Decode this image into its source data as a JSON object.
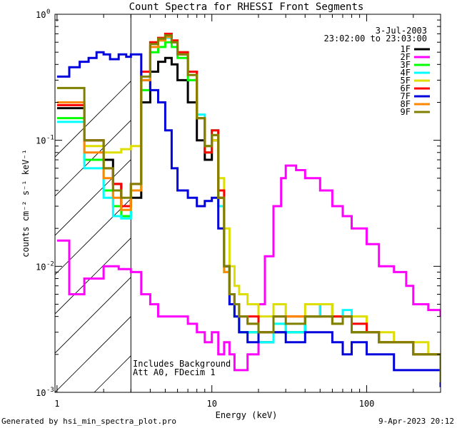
{
  "chart_data": {
    "type": "line",
    "title": "Count Spectra for RHESSI Front Segments",
    "xlabel": "Energy (keV)",
    "ylabel": "counts cm⁻² s⁻¹ keV⁻¹",
    "x_scale": "log",
    "y_scale": "log",
    "xlim": [
      0.97,
      300
    ],
    "ylim": [
      0.001,
      1.0
    ],
    "x_ticks": [
      {
        "value": 1,
        "label": "1"
      },
      {
        "value": 10,
        "label": "10"
      },
      {
        "value": 100,
        "label": "100"
      }
    ],
    "y_ticks": [
      {
        "value": 1.0,
        "base": "10",
        "exp": "0"
      },
      {
        "value": 0.1,
        "base": "10",
        "exp": "-1"
      },
      {
        "value": 0.01,
        "base": "10",
        "exp": "-2"
      },
      {
        "value": 0.001,
        "base": "10",
        "exp": "-3"
      }
    ],
    "date_label": "3-Jul-2003",
    "time_range_label": "23:02:00 to 23:03:00",
    "shaded_region": {
      "x_min": 0.97,
      "x_max": 3.0
    },
    "notes": [
      "Includes Background",
      "Att A0, FDecim 1"
    ],
    "legend_position": "top-right",
    "series": [
      {
        "name": "1F",
        "color": "#000000",
        "x": [
          1,
          1.5,
          2,
          2.3,
          2.6,
          3,
          3.5,
          4,
          4.5,
          5,
          5.5,
          6,
          7,
          8,
          9,
          10,
          11,
          12,
          13,
          14,
          15,
          17,
          20,
          25,
          30,
          40,
          50,
          60,
          70,
          80,
          100,
          120,
          150,
          200,
          250,
          300
        ],
        "y": [
          0.18,
          0.1,
          0.07,
          0.045,
          0.03,
          0.035,
          0.2,
          0.35,
          0.42,
          0.45,
          0.4,
          0.3,
          0.2,
          0.1,
          0.07,
          0.1,
          0.035,
          0.01,
          0.006,
          0.004,
          0.003,
          0.003,
          0.0025,
          0.003,
          0.003,
          0.004,
          0.005,
          0.004,
          0.004,
          0.003,
          0.003,
          0.0025,
          0.0025,
          0.002,
          0.002,
          0.0012
        ]
      },
      {
        "name": "2F",
        "color": "#ff00ff",
        "x": [
          1,
          1.2,
          1.5,
          2,
          2.5,
          3,
          3.5,
          4,
          4.5,
          5,
          6,
          7,
          8,
          9,
          10,
          11,
          12,
          13,
          14,
          15,
          17,
          20,
          22,
          25,
          28,
          30,
          35,
          40,
          50,
          60,
          70,
          80,
          100,
          120,
          150,
          180,
          200,
          250,
          300
        ],
        "y": [
          0.016,
          0.006,
          0.008,
          0.01,
          0.0095,
          0.009,
          0.006,
          0.005,
          0.004,
          0.004,
          0.004,
          0.0035,
          0.003,
          0.0025,
          0.003,
          0.002,
          0.0025,
          0.002,
          0.0015,
          0.0015,
          0.002,
          0.005,
          0.012,
          0.03,
          0.05,
          0.063,
          0.058,
          0.05,
          0.04,
          0.03,
          0.025,
          0.02,
          0.015,
          0.01,
          0.009,
          0.007,
          0.005,
          0.0045,
          0.004
        ]
      },
      {
        "name": "3F",
        "color": "#00ff00",
        "x": [
          1,
          1.5,
          2,
          2.3,
          2.6,
          3,
          3.5,
          4,
          4.5,
          5,
          5.5,
          6,
          7,
          8,
          9,
          10,
          11,
          12,
          13,
          14,
          15,
          17,
          20,
          25,
          30,
          40,
          50,
          60,
          70,
          80,
          100,
          120,
          150,
          200,
          250,
          300
        ],
        "y": [
          0.15,
          0.07,
          0.04,
          0.03,
          0.025,
          0.04,
          0.25,
          0.5,
          0.55,
          0.6,
          0.55,
          0.45,
          0.3,
          0.15,
          0.08,
          0.12,
          0.03,
          0.009,
          0.005,
          0.004,
          0.003,
          0.003,
          0.003,
          0.0035,
          0.003,
          0.004,
          0.004,
          0.0035,
          0.004,
          0.003,
          0.003,
          0.0025,
          0.0025,
          0.002,
          0.002,
          0.0013
        ]
      },
      {
        "name": "4F",
        "color": "#00ffff",
        "x": [
          1,
          1.5,
          2,
          2.3,
          2.6,
          3,
          3.5,
          4,
          4.5,
          5,
          5.5,
          6,
          7,
          8,
          9,
          10,
          11,
          12,
          13,
          14,
          15,
          17,
          20,
          25,
          30,
          40,
          50,
          60,
          70,
          80,
          100,
          120,
          150,
          200,
          250,
          300
        ],
        "y": [
          0.14,
          0.06,
          0.035,
          0.025,
          0.024,
          0.04,
          0.3,
          0.55,
          0.62,
          0.65,
          0.6,
          0.5,
          0.35,
          0.16,
          0.09,
          0.12,
          0.03,
          0.009,
          0.005,
          0.004,
          0.003,
          0.003,
          0.0025,
          0.0035,
          0.003,
          0.004,
          0.005,
          0.004,
          0.0045,
          0.0035,
          0.003,
          0.0025,
          0.0025,
          0.002,
          0.002,
          0.0014
        ]
      },
      {
        "name": "5F",
        "color": "#dddd00",
        "x": [
          1,
          1.5,
          2,
          2.3,
          2.6,
          3,
          3.5,
          4,
          4.5,
          5,
          5.5,
          6,
          7,
          8,
          9,
          10,
          11,
          12,
          13,
          14,
          15,
          17,
          20,
          25,
          30,
          40,
          50,
          60,
          70,
          80,
          100,
          120,
          150,
          200,
          250,
          300
        ],
        "y": [
          0.2,
          0.09,
          0.08,
          0.08,
          0.085,
          0.09,
          0.35,
          0.6,
          0.65,
          0.68,
          0.62,
          0.5,
          0.35,
          0.15,
          0.09,
          0.1,
          0.05,
          0.02,
          0.01,
          0.007,
          0.006,
          0.005,
          0.004,
          0.005,
          0.004,
          0.005,
          0.005,
          0.004,
          0.004,
          0.004,
          0.003,
          0.003,
          0.0025,
          0.0025,
          0.002,
          0.0013
        ]
      },
      {
        "name": "6F",
        "color": "#ff0000",
        "x": [
          1,
          1.5,
          2,
          2.3,
          2.6,
          3,
          3.5,
          4,
          4.5,
          5,
          5.5,
          6,
          7,
          8,
          9,
          10,
          11,
          12,
          13,
          14,
          15,
          17,
          20,
          25,
          30,
          40,
          50,
          60,
          70,
          80,
          100,
          120,
          150,
          200,
          250,
          300
        ],
        "y": [
          0.19,
          0.1,
          0.06,
          0.045,
          0.03,
          0.045,
          0.35,
          0.6,
          0.65,
          0.7,
          0.62,
          0.5,
          0.35,
          0.15,
          0.08,
          0.12,
          0.04,
          0.01,
          0.006,
          0.005,
          0.004,
          0.004,
          0.003,
          0.004,
          0.004,
          0.004,
          0.004,
          0.004,
          0.004,
          0.0035,
          0.003,
          0.0025,
          0.0025,
          0.002,
          0.002,
          0.0012
        ]
      },
      {
        "name": "7F",
        "color": "#0000dd",
        "x": [
          1,
          1.2,
          1.4,
          1.6,
          1.8,
          2,
          2.2,
          2.5,
          2.8,
          3,
          3.5,
          4,
          4.5,
          5,
          5.5,
          6,
          7,
          8,
          9,
          10,
          11,
          12,
          13,
          14,
          15,
          17,
          20,
          25,
          30,
          40,
          50,
          60,
          70,
          80,
          100,
          120,
          150,
          200,
          250,
          300
        ],
        "y": [
          0.32,
          0.38,
          0.42,
          0.45,
          0.5,
          0.48,
          0.44,
          0.48,
          0.46,
          0.48,
          0.3,
          0.25,
          0.2,
          0.12,
          0.06,
          0.04,
          0.035,
          0.03,
          0.033,
          0.035,
          0.02,
          0.01,
          0.005,
          0.004,
          0.003,
          0.0025,
          0.003,
          0.003,
          0.0025,
          0.003,
          0.003,
          0.0025,
          0.002,
          0.0025,
          0.002,
          0.002,
          0.0015,
          0.0015,
          0.0015,
          0.0011
        ]
      },
      {
        "name": "8F",
        "color": "#ff8800",
        "x": [
          1,
          1.5,
          2,
          2.3,
          2.6,
          3,
          3.5,
          4,
          4.5,
          5,
          5.5,
          6,
          7,
          8,
          9,
          10,
          11,
          12,
          13,
          14,
          15,
          17,
          20,
          25,
          30,
          40,
          50,
          60,
          70,
          80,
          100,
          120,
          150,
          200,
          250,
          300
        ],
        "y": [
          0.2,
          0.08,
          0.05,
          0.035,
          0.028,
          0.04,
          0.3,
          0.55,
          0.62,
          0.66,
          0.6,
          0.48,
          0.33,
          0.15,
          0.09,
          0.11,
          0.035,
          0.009,
          0.006,
          0.005,
          0.004,
          0.0035,
          0.003,
          0.004,
          0.004,
          0.004,
          0.004,
          0.0035,
          0.004,
          0.003,
          0.003,
          0.0025,
          0.0025,
          0.002,
          0.002,
          0.0013
        ]
      },
      {
        "name": "9F",
        "color": "#808000",
        "x": [
          1,
          1.5,
          2,
          2.3,
          2.6,
          3,
          3.5,
          4,
          4.5,
          5,
          5.5,
          6,
          7,
          8,
          9,
          10,
          11,
          12,
          13,
          14,
          15,
          17,
          20,
          25,
          30,
          40,
          50,
          60,
          70,
          80,
          100,
          120,
          150,
          200,
          250,
          300
        ],
        "y": [
          0.26,
          0.1,
          0.06,
          0.04,
          0.035,
          0.045,
          0.32,
          0.58,
          0.64,
          0.68,
          0.6,
          0.48,
          0.33,
          0.15,
          0.09,
          0.11,
          0.035,
          0.01,
          0.006,
          0.005,
          0.004,
          0.0035,
          0.003,
          0.004,
          0.0035,
          0.004,
          0.004,
          0.0035,
          0.004,
          0.003,
          0.003,
          0.0025,
          0.0025,
          0.002,
          0.002,
          0.0012
        ]
      }
    ]
  },
  "footer": {
    "generated_by": "Generated by hsi_min_spectra_plot.pro",
    "timestamp": "9-Apr-2023 20:12"
  }
}
